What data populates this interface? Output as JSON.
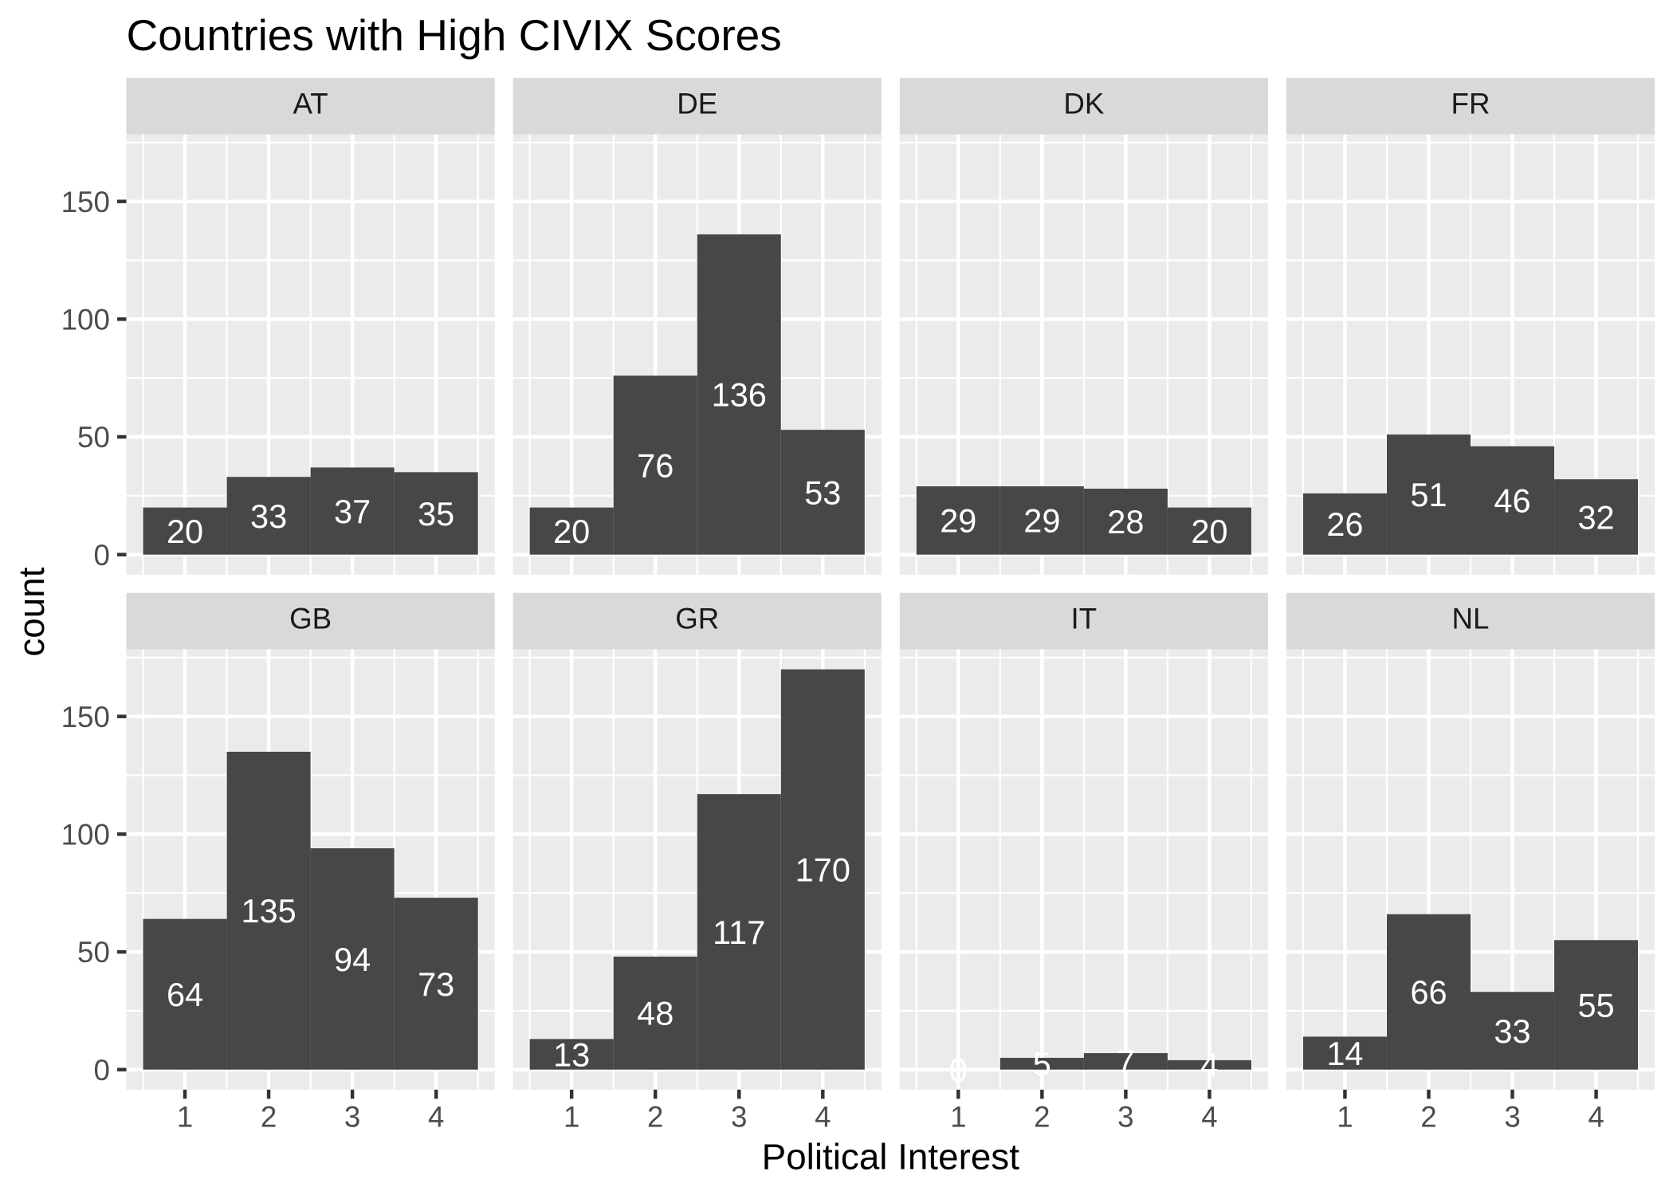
{
  "chart_data": {
    "type": "bar",
    "title": "Countries with High CIVIX Scores",
    "xlabel": "Political Interest",
    "ylabel": "count",
    "x": [
      1,
      2,
      3,
      4
    ],
    "xlim": [
      0.3,
      4.7
    ],
    "ylim": [
      -8.5,
      178.5
    ],
    "y_ticks": [
      0,
      50,
      100,
      150
    ],
    "grid": true,
    "facets": [
      {
        "name": "AT",
        "values": [
          20,
          33,
          37,
          35
        ]
      },
      {
        "name": "DE",
        "values": [
          20,
          76,
          136,
          53
        ]
      },
      {
        "name": "DK",
        "values": [
          29,
          29,
          28,
          20
        ]
      },
      {
        "name": "FR",
        "values": [
          26,
          51,
          46,
          32
        ]
      },
      {
        "name": "GB",
        "values": [
          64,
          135,
          94,
          73
        ]
      },
      {
        "name": "GR",
        "values": [
          13,
          48,
          117,
          170
        ]
      },
      {
        "name": "IT",
        "values": [
          0,
          5,
          7,
          4
        ]
      },
      {
        "name": "NL",
        "values": [
          14,
          66,
          33,
          55
        ]
      }
    ],
    "colors": {
      "bars": "#474747",
      "bar_labels": "#FFFFFF",
      "panel_background": "#EBEBEB",
      "strip_background": "#D9D9D9",
      "grid": "#FFFFFF",
      "ticks": "#333333"
    }
  }
}
